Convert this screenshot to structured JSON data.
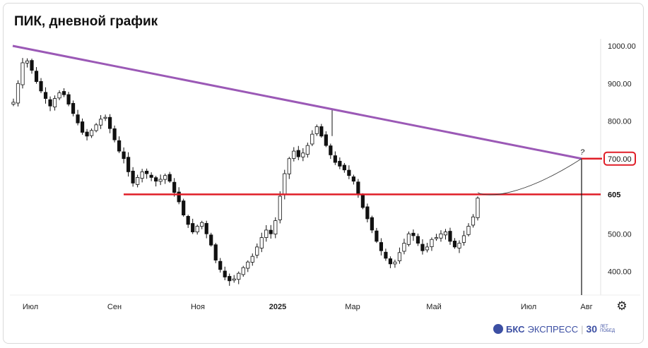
{
  "title": "ПИК, дневной график",
  "chart_data": {
    "type": "candlestick",
    "title": "ПИК, дневной график",
    "y_ticks": [
      {
        "value": 1000,
        "label": "1000.00"
      },
      {
        "value": 900,
        "label": "900.00"
      },
      {
        "value": 800,
        "label": "800.00"
      },
      {
        "value": 500,
        "label": "500.00"
      },
      {
        "value": 400,
        "label": "400.00"
      }
    ],
    "x_labels": [
      "Июл",
      "Сен",
      "Ноя",
      "2025",
      "Мар",
      "Май",
      "Июл",
      "Авг"
    ],
    "ylim": [
      340,
      1015
    ],
    "grid": false,
    "approximate_closes": [
      850,
      900,
      955,
      960,
      935,
      905,
      880,
      860,
      840,
      860,
      875,
      870,
      845,
      820,
      795,
      770,
      760,
      775,
      790,
      805,
      810,
      780,
      750,
      720,
      700,
      665,
      635,
      650,
      665,
      660,
      650,
      640,
      645,
      655,
      640,
      610,
      585,
      550,
      525,
      505,
      520,
      530,
      500,
      470,
      430,
      405,
      385,
      375,
      380,
      395,
      410,
      425,
      440,
      465,
      490,
      510,
      500,
      535,
      600,
      660,
      700,
      720,
      705,
      715,
      735,
      765,
      785,
      760,
      735,
      710,
      690,
      680,
      670,
      655,
      640,
      605,
      570,
      540,
      510,
      480,
      455,
      435,
      420,
      425,
      450,
      475,
      500,
      495,
      475,
      455,
      465,
      485,
      490,
      500,
      505,
      480,
      465,
      475,
      495,
      520,
      545,
      595
    ],
    "resistance_line": {
      "from": {
        "x_label": "Июл",
        "value": 1000
      },
      "to": {
        "x_label": "Авг",
        "value": 700
      }
    },
    "support_level": {
      "value": 605,
      "label": "605"
    },
    "target_level": {
      "value": 700,
      "label": "700.00"
    },
    "annotation": "?"
  },
  "brand": {
    "name_bold": "БКС",
    "name": "ЭКСПРЕСС",
    "anniv_num": "30",
    "anniv_text": "ЛЕТ ПОБЕД"
  },
  "colors": {
    "resistance": "#9b59b6",
    "support": "#e01e28",
    "candles": "#111111"
  }
}
